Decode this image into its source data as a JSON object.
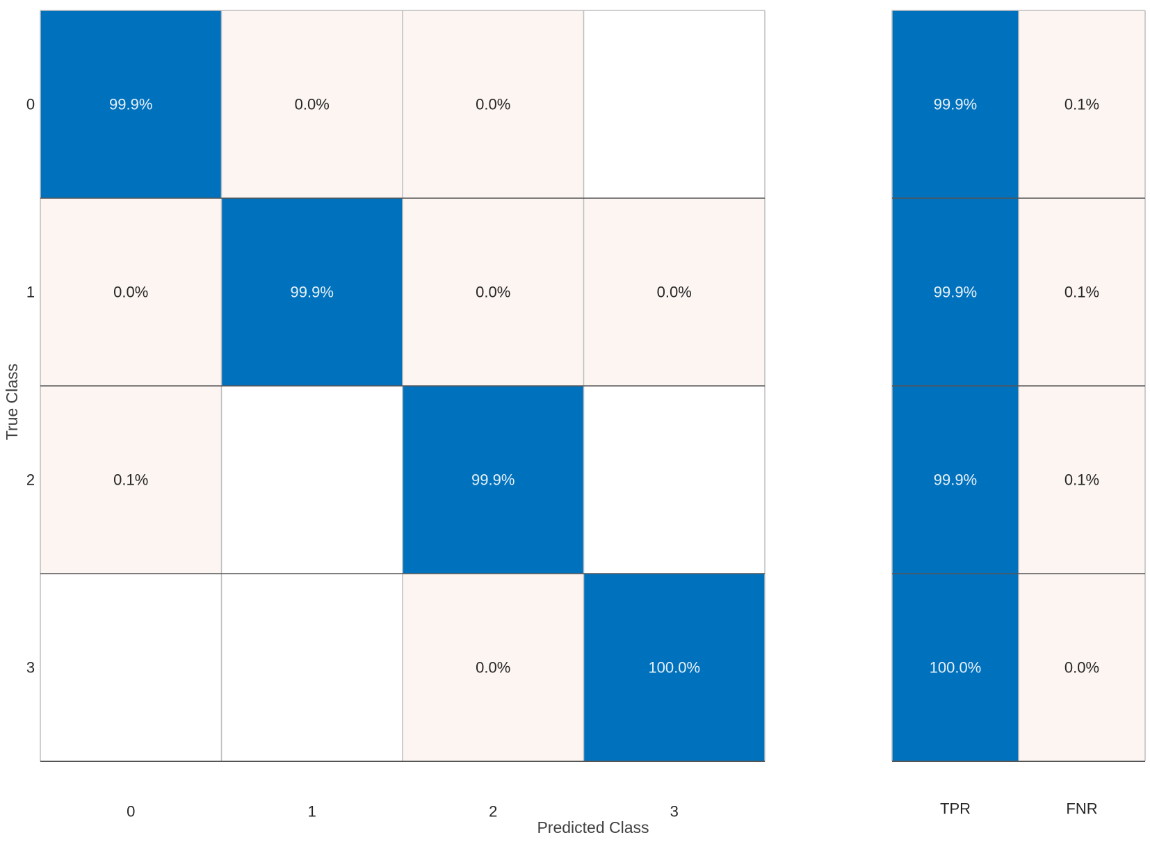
{
  "chart_data": {
    "type": "heatmap",
    "title": "",
    "xlabel": "Predicted Class",
    "ylabel": "True Class",
    "classes": [
      "0",
      "1",
      "2",
      "3"
    ],
    "matrix": [
      [
        "99.9%",
        "0.0%",
        "0.0%",
        ""
      ],
      [
        "0.0%",
        "99.9%",
        "0.0%",
        "0.0%"
      ],
      [
        "0.1%",
        "",
        "99.9%",
        ""
      ],
      [
        "",
        "",
        "0.0%",
        "100.0%"
      ]
    ],
    "values": [
      [
        99.9,
        0.0,
        0.0,
        null
      ],
      [
        0.0,
        99.9,
        0.0,
        0.0
      ],
      [
        0.1,
        null,
        99.9,
        null
      ],
      [
        null,
        null,
        0.0,
        100.0
      ]
    ],
    "summary": {
      "columns": [
        "TPR",
        "FNR"
      ],
      "matrix": [
        [
          "99.9%",
          "0.1%"
        ],
        [
          "99.9%",
          "0.1%"
        ],
        [
          "99.9%",
          "0.1%"
        ],
        [
          "100.0%",
          "0.0%"
        ]
      ],
      "values": [
        [
          99.9,
          0.1
        ],
        [
          99.9,
          0.1
        ],
        [
          99.9,
          0.1
        ],
        [
          100.0,
          0.0
        ]
      ]
    },
    "colors": {
      "high": "#0072bd",
      "low": "#fcf5f2",
      "empty": "#ffffff",
      "high_text": "#e8f0f8",
      "low_text": "#262626",
      "grid": "#bdbdbd",
      "row_sep": "#555555"
    }
  }
}
